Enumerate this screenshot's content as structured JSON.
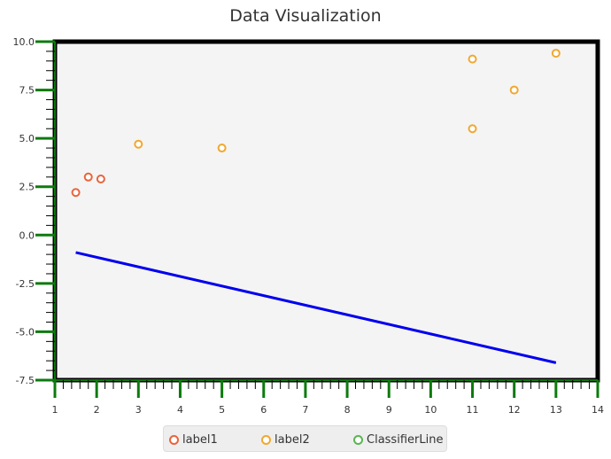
{
  "chart_data": {
    "type": "scatter",
    "title": "Data Visualization",
    "xlabel": "",
    "ylabel": "",
    "xlim": [
      1,
      14
    ],
    "ylim": [
      -7.5,
      10.0
    ],
    "x_ticks": [
      "1",
      "2",
      "3",
      "4",
      "5",
      "6",
      "7",
      "8",
      "9",
      "10",
      "11",
      "12",
      "13",
      "14"
    ],
    "y_ticks": [
      "10.0",
      "7.5",
      "5.0",
      "2.5",
      "0.0",
      "-2.5",
      "-5.0",
      "-7.5"
    ],
    "grid": false,
    "legend_position": "bottom",
    "series": [
      {
        "name": "label1",
        "kind": "scatter",
        "color": "#e8643c",
        "points": [
          [
            1.5,
            2.2
          ],
          [
            1.8,
            3.0
          ],
          [
            2.1,
            2.9
          ]
        ]
      },
      {
        "name": "label2",
        "kind": "scatter",
        "color": "#f0a830",
        "points": [
          [
            3.0,
            4.7
          ],
          [
            5.0,
            4.5
          ],
          [
            11.0,
            9.1
          ],
          [
            11.0,
            5.5
          ],
          [
            12.0,
            7.5
          ],
          [
            13.0,
            9.4
          ]
        ]
      },
      {
        "name": "ClassifierLine",
        "kind": "line",
        "color": "#0000ee",
        "legend_color": "#5ab552",
        "points": [
          [
            1.5,
            -0.9
          ],
          [
            13.0,
            -6.6
          ]
        ]
      }
    ]
  }
}
